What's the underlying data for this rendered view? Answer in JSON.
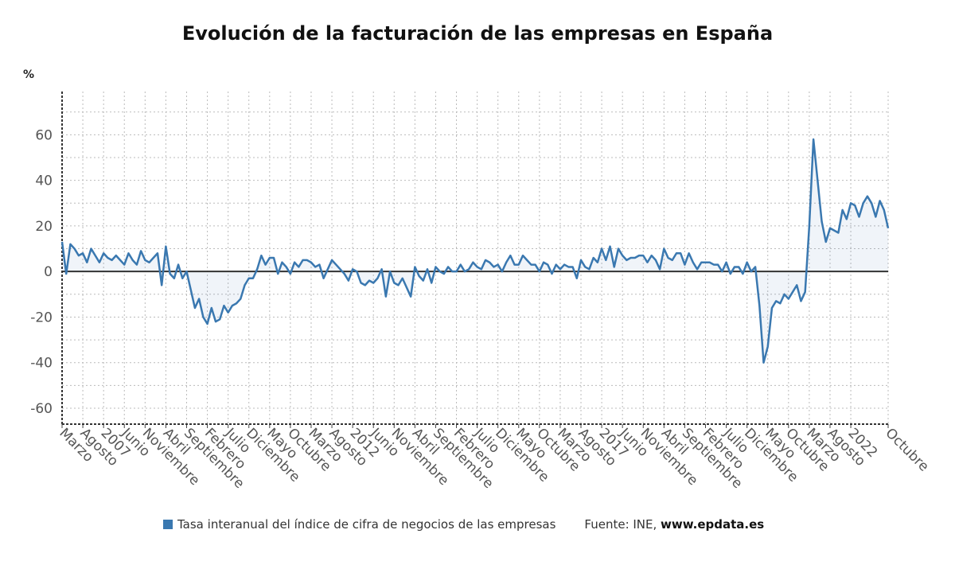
{
  "chart_data": {
    "type": "area",
    "title": "Evolución de la facturación de las empresas en España",
    "ylabel": "%",
    "ylim": [
      -67,
      79
    ],
    "yticks": [
      -60,
      -40,
      -20,
      0,
      20,
      40,
      60
    ],
    "grid": true,
    "frequency": "monthly",
    "first_period": "2006-03",
    "xticks": [
      {
        "label": "Marzo",
        "date": "2006-03"
      },
      {
        "label": "Agosto",
        "date": "2006-08"
      },
      {
        "label": "2007",
        "date": "2007-01"
      },
      {
        "label": "Junio",
        "date": "2007-06"
      },
      {
        "label": "Noviembre",
        "date": "2007-11"
      },
      {
        "label": "Abril",
        "date": "2008-04"
      },
      {
        "label": "Septiembre",
        "date": "2008-09"
      },
      {
        "label": "Febrero",
        "date": "2009-02"
      },
      {
        "label": "Julio",
        "date": "2009-07"
      },
      {
        "label": "Diciembre",
        "date": "2009-12"
      },
      {
        "label": "Mayo",
        "date": "2010-05"
      },
      {
        "label": "Octubre",
        "date": "2010-10"
      },
      {
        "label": "Marzo",
        "date": "2011-03"
      },
      {
        "label": "Agosto",
        "date": "2011-08"
      },
      {
        "label": "2012",
        "date": "2012-01"
      },
      {
        "label": "Junio",
        "date": "2012-06"
      },
      {
        "label": "Noviembre",
        "date": "2012-11"
      },
      {
        "label": "Abril",
        "date": "2013-04"
      },
      {
        "label": "Septiembre",
        "date": "2013-09"
      },
      {
        "label": "Febrero",
        "date": "2014-02"
      },
      {
        "label": "Julio",
        "date": "2014-07"
      },
      {
        "label": "Diciembre",
        "date": "2014-12"
      },
      {
        "label": "Mayo",
        "date": "2015-05"
      },
      {
        "label": "Octubre",
        "date": "2015-10"
      },
      {
        "label": "Marzo",
        "date": "2016-03"
      },
      {
        "label": "Agosto",
        "date": "2016-08"
      },
      {
        "label": "2017",
        "date": "2017-01"
      },
      {
        "label": "Junio",
        "date": "2017-06"
      },
      {
        "label": "Noviembre",
        "date": "2017-11"
      },
      {
        "label": "Abril",
        "date": "2018-04"
      },
      {
        "label": "Septiembre",
        "date": "2018-09"
      },
      {
        "label": "Febrero",
        "date": "2019-02"
      },
      {
        "label": "Julio",
        "date": "2019-07"
      },
      {
        "label": "Diciembre",
        "date": "2019-12"
      },
      {
        "label": "Mayo",
        "date": "2020-05"
      },
      {
        "label": "Octubre",
        "date": "2020-10"
      },
      {
        "label": "Marzo",
        "date": "2021-03"
      },
      {
        "label": "Agosto",
        "date": "2021-08"
      },
      {
        "label": "2022",
        "date": "2022-01"
      },
      {
        "label": "Octubre",
        "date": "2022-10"
      }
    ],
    "series": [
      {
        "name": "Tasa interanual del índice de cifra de negocios de las empresas",
        "color": "#3a78b0",
        "values": [
          13,
          -1,
          12,
          10,
          7,
          8,
          4,
          10,
          7,
          4,
          8,
          6,
          5,
          7,
          5,
          3,
          8,
          5,
          3,
          9,
          5,
          4,
          6,
          8,
          -6,
          11,
          -1,
          -3,
          3,
          -3,
          0,
          -8,
          -16,
          -12,
          -20,
          -23,
          -16,
          -22,
          -21,
          -15,
          -18,
          -15,
          -14,
          -12,
          -6,
          -3,
          -3,
          1,
          7,
          3,
          6,
          6,
          -1,
          4,
          2,
          -1,
          4,
          2,
          5,
          5,
          4,
          2,
          3,
          -3,
          1,
          5,
          3,
          1,
          -1,
          -4,
          1,
          0,
          -5,
          -6,
          -4,
          -5,
          -3,
          1,
          -11,
          0,
          -5,
          -6,
          -3,
          -7,
          -11,
          2,
          -2,
          -4,
          1,
          -5,
          2,
          0,
          -1,
          2,
          0,
          0,
          3,
          0,
          1,
          4,
          2,
          1,
          5,
          4,
          2,
          3,
          0,
          4,
          7,
          3,
          3,
          7,
          5,
          3,
          3,
          0,
          4,
          3,
          -1,
          3,
          1,
          3,
          2,
          2,
          -3,
          5,
          2,
          1,
          6,
          4,
          10,
          5,
          11,
          2,
          10,
          7,
          5,
          6,
          6,
          7,
          7,
          4,
          7,
          5,
          1,
          10,
          6,
          5,
          8,
          8,
          3,
          8,
          4,
          1,
          4,
          4,
          4,
          3,
          3,
          0,
          4,
          -1,
          2,
          2,
          -1,
          4,
          0,
          2,
          -15,
          -40,
          -33,
          -16,
          -13,
          -14,
          -10,
          -12,
          -9,
          -6,
          -13,
          -9,
          20,
          58,
          40,
          22,
          13,
          19,
          18,
          17,
          27,
          23,
          30,
          29,
          24,
          30,
          33,
          30,
          24,
          31,
          27,
          19
        ]
      }
    ]
  },
  "legend": {
    "series_label": "Tasa interanual del índice de cifra de negocios de las empresas",
    "source_prefix": "Fuente: INE, ",
    "source_site": "www.epdata.es"
  }
}
